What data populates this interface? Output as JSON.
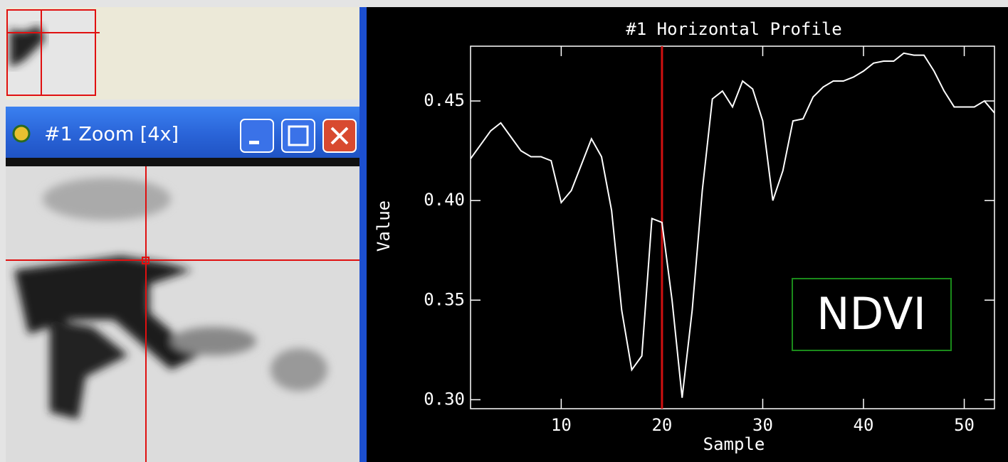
{
  "window": {
    "title": "#1 Zoom [4x]"
  },
  "chart_data": {
    "type": "line",
    "title": "#1 Horizontal Profile",
    "x_label": "Sample",
    "y_label": "Value",
    "x": [
      1,
      2,
      3,
      4,
      5,
      6,
      7,
      8,
      9,
      10,
      11,
      12,
      13,
      14,
      15,
      16,
      17,
      18,
      19,
      20,
      21,
      22,
      23,
      24,
      25,
      26,
      27,
      28,
      29,
      30,
      31,
      32,
      33,
      34,
      35,
      36,
      37,
      38,
      39,
      40,
      41,
      42,
      43,
      44,
      45,
      46,
      47,
      48,
      49,
      50,
      51,
      52,
      53
    ],
    "series": [
      {
        "name": "NDVI",
        "color": "#ffffff",
        "values": [
          0.421,
          0.428,
          0.435,
          0.439,
          0.432,
          0.425,
          0.422,
          0.422,
          0.42,
          0.399,
          0.405,
          0.418,
          0.431,
          0.422,
          0.395,
          0.345,
          0.315,
          0.322,
          0.391,
          0.389,
          0.35,
          0.301,
          0.345,
          0.405,
          0.451,
          0.455,
          0.447,
          0.46,
          0.456,
          0.44,
          0.4,
          0.415,
          0.44,
          0.441,
          0.452,
          0.457,
          0.46,
          0.46,
          0.462,
          0.465,
          0.469,
          0.47,
          0.47,
          0.474,
          0.473,
          0.473,
          0.465,
          0.455,
          0.447,
          0.447,
          0.447,
          0.45,
          0.444
        ]
      }
    ],
    "xlim": [
      1,
      53
    ],
    "ylim": [
      0.2955,
      0.4775
    ],
    "xticks": [
      10,
      20,
      30,
      40,
      50
    ],
    "yticks": [
      {
        "value": 0.3,
        "label": "0.30"
      },
      0.35,
      {
        "value": 0.4,
        "label": "0.40"
      },
      0.45
    ],
    "cursor": 20,
    "cursor_color": "#d01010"
  }
}
